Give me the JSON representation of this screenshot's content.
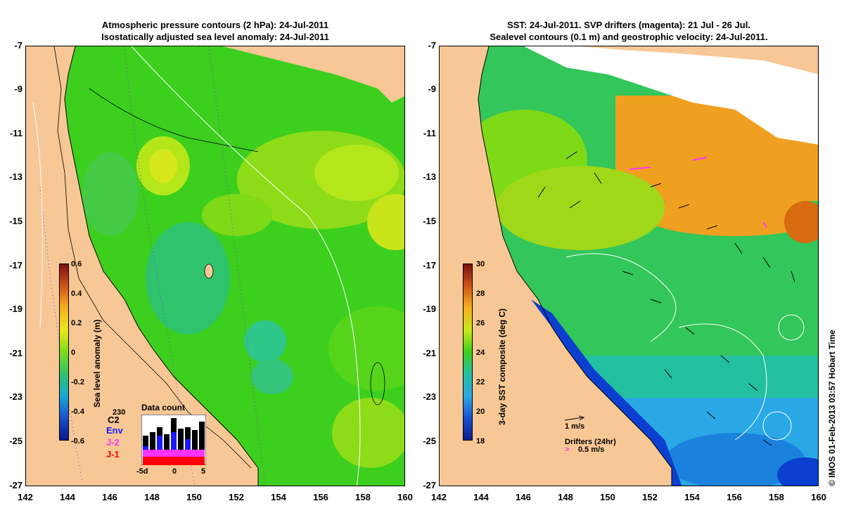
{
  "left_panel": {
    "title_line1": "Atmospheric pressure contours (2 hPa): 24-Jul-2011",
    "title_line2": "Isostatically adjusted sea level anomaly: 24-Jul-2011",
    "y_ticks": [
      "-7",
      "-9",
      "-11",
      "-13",
      "-15",
      "-17",
      "-19",
      "-21",
      "-23",
      "-25",
      "-27"
    ],
    "x_ticks": [
      "142",
      "144",
      "146",
      "148",
      "150",
      "152",
      "154",
      "156",
      "158",
      "160"
    ],
    "colorbar": {
      "label": "Sea level anomaly (m)",
      "ticks": [
        "0.6",
        "0.4",
        "0.2",
        "0",
        "-0.2",
        "-0.4",
        "-0.6"
      ],
      "range": [
        -0.6,
        0.6
      ]
    },
    "data_count": {
      "title": "Data count",
      "legend": [
        "C2",
        "Env",
        "J-2",
        "J-1"
      ],
      "legend_colors": [
        "#000000",
        "#1a1aff",
        "#ff33ff",
        "#ff0000"
      ],
      "overlap_number": "230",
      "x_ticks": [
        "-5d",
        "0",
        "5"
      ]
    }
  },
  "right_panel": {
    "title_line1": "SST: 24-Jul-2011. SVP drifters (magenta): 21 Jul - 26 Jul.",
    "title_line2": "Sealevel contours (0.1 m) and geostrophic velocity: 24-Jul-2011.",
    "y_ticks": [
      "-7",
      "-9",
      "-11",
      "-13",
      "-15",
      "-17",
      "-19",
      "-21",
      "-23",
      "-25",
      "-27"
    ],
    "x_ticks": [
      "142",
      "144",
      "146",
      "148",
      "150",
      "152",
      "154",
      "156",
      "158",
      "160"
    ],
    "colorbar": {
      "label": "3-day SST composite (deg C)",
      "ticks": [
        "30",
        "28",
        "26",
        "24",
        "22",
        "20",
        "18"
      ],
      "range": [
        18,
        30
      ]
    },
    "velocity_scale_label": "1 m/s",
    "drifters_label": "Drifters (24hr)",
    "drifters_speed_label": "0.5 m/s"
  },
  "copyright": "© IMOS 01-Feb-2013 03:57 Hobart Time",
  "colors": {
    "land": "#f7c896",
    "sea_green": "#3ccf1e",
    "sea_light": "#7ee016",
    "sea_yellow": "#c8e81a",
    "sea_cyan": "#2fc8a0",
    "sst_orange": "#f0a020",
    "sst_blue": "#2aa8e6",
    "sst_deep": "#0a3fcf",
    "drifter": "#ff33ff"
  }
}
